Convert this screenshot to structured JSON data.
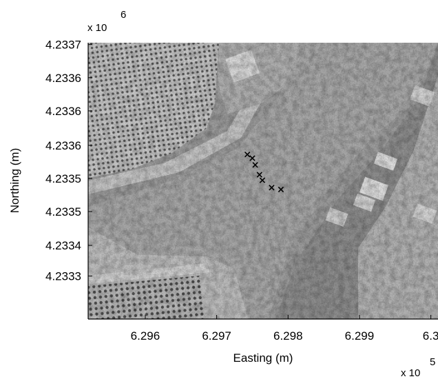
{
  "chart_data": {
    "type": "scatter",
    "background": "grayscale aerial photograph (river with orchards and buildings)",
    "xlabel": "Easting (m)",
    "ylabel": "Northing (m)",
    "x_multiplier": {
      "base": "x 10",
      "exponent": "5"
    },
    "y_multiplier": {
      "base": "x 10",
      "exponent": "6"
    },
    "xlim": [
      6.2952,
      6.3001
    ],
    "ylim": [
      4.23326,
      4.23371
    ],
    "x_ticks": [
      {
        "value": 6.296,
        "label": "6.296"
      },
      {
        "value": 6.297,
        "label": "6.297"
      },
      {
        "value": 6.298,
        "label": "6.298"
      },
      {
        "value": 6.299,
        "label": "6.299"
      },
      {
        "value": 6.3,
        "label": "6.3"
      }
    ],
    "y_ticks": [
      {
        "value": 4.23333,
        "label": "4.2333"
      },
      {
        "value": 4.23338,
        "label": "4.2334"
      },
      {
        "value": 4.233435,
        "label": "4.2335"
      },
      {
        "value": 4.233489,
        "label": "4.2335"
      },
      {
        "value": 4.233543,
        "label": "4.2336"
      },
      {
        "value": 4.233599,
        "label": "4.2336"
      },
      {
        "value": 4.233653,
        "label": "4.2336"
      },
      {
        "value": 4.233707,
        "label": "4.2337"
      }
    ],
    "series": [
      {
        "marker": "x",
        "color": "#000000",
        "points": [
          {
            "x": 6.29743,
            "y": 4.233528
          },
          {
            "x": 6.2975,
            "y": 4.233522
          },
          {
            "x": 6.29754,
            "y": 4.233511
          },
          {
            "x": 6.2976,
            "y": 4.233495
          },
          {
            "x": 6.29764,
            "y": 4.233486
          },
          {
            "x": 6.29777,
            "y": 4.233474
          },
          {
            "x": 6.2979,
            "y": 4.233471
          }
        ]
      }
    ],
    "grid": false
  }
}
